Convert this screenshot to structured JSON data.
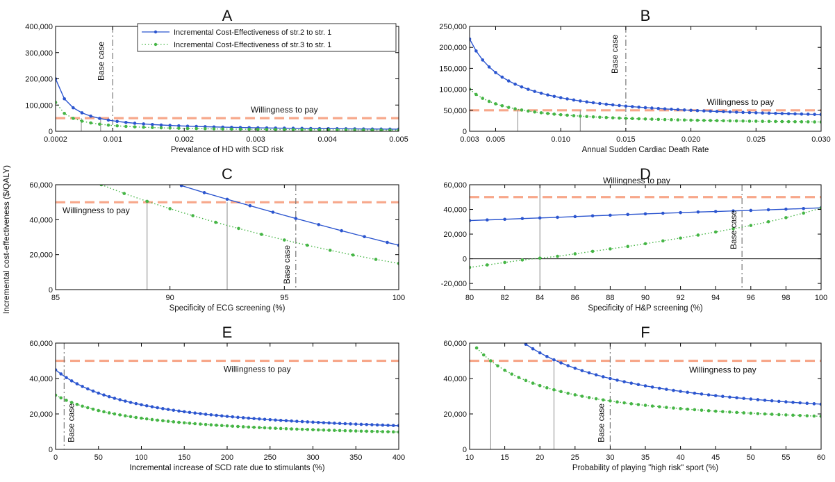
{
  "figure": {
    "ylabel": "Incremental cost-effectiveness ($/QALY)",
    "colors": {
      "series1": "#2b55cf",
      "series2": "#45b545",
      "wtp": "#f7a78a",
      "vline": "#999999",
      "grid_axis": "#000000"
    }
  },
  "legend": {
    "items": [
      {
        "label": "Incremental Cost-Effectiveness of str.2 to str. 1",
        "color": "#2b55cf",
        "style": "solid"
      },
      {
        "label": "Incremental Cost-Effectiveness of str.3 to str. 1",
        "color": "#45b545",
        "style": "dotted"
      }
    ]
  },
  "chart_data": [
    {
      "type": "line",
      "title": "A",
      "xlabel": "Prevalance of HD with SCD risk",
      "ylabel": "",
      "xlim": [
        0.0002,
        0.005
      ],
      "ylim": [
        0,
        400000
      ],
      "xticks": [
        0.0002,
        0.001,
        0.002,
        0.003,
        0.004,
        0.005
      ],
      "xtick_labels": [
        "0.0002",
        "0.001",
        "0.002",
        "0.003",
        "0.004",
        "0.005"
      ],
      "yticks": [
        0,
        100000,
        200000,
        300000,
        400000
      ],
      "ytick_labels": [
        "0",
        "100,000",
        "200,000",
        "300,000",
        "400,000"
      ],
      "willingness_to_pay": 50000,
      "wtp_label": "Willingness to pay",
      "base_case": 0.001,
      "base_case_label": "Base case",
      "threshold_lines": [
        0.00056,
        0.00083
      ],
      "series": [
        {
          "name": "Incremental Cost-Effectiveness of str.2 to str. 1",
          "curve": "reciprocal",
          "a": 0,
          "b": 40,
          "n": 40,
          "style": "solid"
        },
        {
          "name": "Incremental Cost-Effectiveness of str.3 to str. 1",
          "curve": "reciprocal",
          "a": 0,
          "b": 22,
          "n": 40,
          "style": "dotted"
        }
      ]
    },
    {
      "type": "line",
      "title": "B",
      "xlabel": "Annual Sudden Cardiac Death Rate",
      "ylabel": "",
      "xlim": [
        0.003,
        0.03
      ],
      "ylim": [
        0,
        250000
      ],
      "xticks": [
        0.003,
        0.005,
        0.01,
        0.015,
        0.02,
        0.025,
        0.03
      ],
      "xtick_labels": [
        "0.003",
        "0.005",
        "0.010",
        "0.015",
        "0.020",
        "0.025",
        "0.030"
      ],
      "yticks": [
        0,
        50000,
        100000,
        150000,
        200000,
        250000
      ],
      "ytick_labels": [
        "0",
        "50,000",
        "100,000",
        "150,000",
        "200,000",
        "250,000"
      ],
      "willingness_to_pay": 50000,
      "wtp_label": "Willingness to pay",
      "base_case": 0.015,
      "base_case_label": "Base case",
      "threshold_lines": [
        0.0067,
        0.0115
      ],
      "series": [
        {
          "name": "Incremental Cost-Effectiveness of str.2 to str. 1",
          "curve": "reciprocal",
          "a": 20000,
          "b": 600,
          "n": 55,
          "style": "solid"
        },
        {
          "name": "Incremental Cost-Effectiveness of str.3 to str. 1",
          "curve": "reciprocal",
          "a": 13500,
          "b": 260,
          "n": 55,
          "style": "dotted"
        }
      ]
    },
    {
      "type": "line",
      "title": "C",
      "xlabel": "Specificity of ECG screening (%)",
      "ylabel": "",
      "xlim": [
        85,
        100
      ],
      "ylim": [
        0,
        60000
      ],
      "xticks": [
        85,
        90,
        95,
        100
      ],
      "xtick_labels": [
        "85",
        "90",
        "95",
        "100"
      ],
      "yticks": [
        0,
        20000,
        40000,
        60000
      ],
      "ytick_labels": [
        "0",
        "20,000",
        "40,000",
        "60,000"
      ],
      "willingness_to_pay": 50000,
      "wtp_label": "Willingness to pay",
      "base_case": 95.5,
      "base_case_label": "Base case",
      "threshold_lines": [
        89,
        92.5
      ],
      "series": [
        {
          "name": "Incremental Cost-Effectiveness of str.2 to str. 1",
          "x": [
            90.5,
            91.5,
            92.5,
            93.5,
            94.5,
            95.5,
            96.5,
            97.5,
            98.5,
            99.5,
            100
          ],
          "y": [
            59500,
            55500,
            51700,
            48000,
            44300,
            40700,
            37200,
            33700,
            30300,
            27000,
            25400
          ],
          "style": "solid"
        },
        {
          "name": "Incremental Cost-Effectiveness of str.3 to str. 1",
          "x": [
            87,
            88,
            89,
            90,
            91,
            92,
            93,
            94,
            95,
            96,
            97,
            98,
            99,
            100
          ],
          "y": [
            60000,
            55000,
            50500,
            46300,
            42300,
            38500,
            35000,
            31600,
            28400,
            25400,
            22500,
            19800,
            17300,
            15000
          ],
          "style": "dotted"
        }
      ]
    },
    {
      "type": "line",
      "title": "D",
      "xlabel": "Specificity of H&P screening (%)",
      "ylabel": "",
      "xlim": [
        80,
        100
      ],
      "ylim": [
        -25000,
        60000
      ],
      "xticks": [
        80,
        82,
        84,
        86,
        88,
        90,
        92,
        94,
        96,
        98,
        100
      ],
      "xtick_labels": [
        "80",
        "82",
        "84",
        "86",
        "88",
        "90",
        "92",
        "94",
        "96",
        "98",
        "100"
      ],
      "yticks": [
        -20000,
        0,
        20000,
        40000,
        60000
      ],
      "ytick_labels": [
        "-20,000",
        "0",
        "20,000",
        "40,000",
        "60,000"
      ],
      "willingness_to_pay": 50000,
      "wtp_label": "Willingness to pay",
      "base_case": 95.5,
      "base_case_label": "Base case",
      "threshold_lines": [
        84
      ],
      "zero_line": true,
      "series": [
        {
          "name": "Incremental Cost-Effectiveness of str.2 to str. 1",
          "x": [
            80,
            81,
            82,
            83,
            84,
            85,
            86,
            87,
            88,
            89,
            90,
            91,
            92,
            93,
            94,
            95,
            96,
            97,
            98,
            99,
            100
          ],
          "y": [
            31000,
            31500,
            32000,
            32600,
            33100,
            33600,
            34200,
            34800,
            35300,
            35900,
            36400,
            36900,
            37400,
            37900,
            38300,
            38800,
            39200,
            39700,
            40200,
            40700,
            41300
          ],
          "style": "solid"
        },
        {
          "name": "Incremental Cost-Effectiveness of str.3 to str. 1",
          "x": [
            80,
            81,
            82,
            83,
            84,
            85,
            86,
            87,
            88,
            89,
            90,
            91,
            92,
            93,
            94,
            95,
            96,
            97,
            98,
            99,
            100
          ],
          "y": [
            -7000,
            -5000,
            -3000,
            -1000,
            500,
            2000,
            4000,
            6000,
            8000,
            10000,
            12200,
            14500,
            16800,
            19200,
            21700,
            24300,
            27000,
            30000,
            33300,
            37000,
            41000
          ],
          "style": "dotted"
        }
      ]
    },
    {
      "type": "line",
      "title": "E",
      "xlabel": "Incremental increase of SCD rate due to stimulants (%)",
      "ylabel": "",
      "xlim": [
        0,
        400
      ],
      "ylim": [
        0,
        60000
      ],
      "xticks": [
        0,
        50,
        100,
        150,
        200,
        250,
        300,
        350,
        400
      ],
      "xtick_labels": [
        "0",
        "50",
        "100",
        "150",
        "200",
        "250",
        "300",
        "350",
        "400"
      ],
      "yticks": [
        0,
        20000,
        40000,
        60000
      ],
      "ytick_labels": [
        "0",
        "20,000",
        "40,000",
        "60,000"
      ],
      "willingness_to_pay": 50000,
      "wtp_label": "Willingness to pay",
      "base_case": 10,
      "base_case_label": "Base case",
      "threshold_lines": [],
      "series": [
        {
          "name": "Incremental Cost-Effectiveness of str.2 to str. 1",
          "curve": "rational",
          "a": 5500,
          "b": 3940000,
          "c": 100,
          "n": 65,
          "style": "solid"
        },
        {
          "name": "Incremental Cost-Effectiveness of str.3 to str. 1",
          "curve": "rational",
          "a": 4600,
          "b": 2600000,
          "c": 100,
          "n": 65,
          "style": "dotted"
        }
      ]
    },
    {
      "type": "line",
      "title": "F",
      "xlabel": "Probability of playing \"high risk\" sport (%)",
      "ylabel": "",
      "xlim": [
        10,
        60
      ],
      "ylim": [
        0,
        60000
      ],
      "xticks": [
        10,
        15,
        20,
        25,
        30,
        35,
        40,
        45,
        50,
        55,
        60
      ],
      "xtick_labels": [
        "10",
        "15",
        "20",
        "25",
        "30",
        "35",
        "40",
        "45",
        "50",
        "55",
        "60"
      ],
      "yticks": [
        0,
        20000,
        40000,
        60000
      ],
      "ytick_labels": [
        "0",
        "20,000",
        "40,000",
        "60,000"
      ],
      "willingness_to_pay": 50000,
      "wtp_label": "Willingness to pay",
      "base_case": 30,
      "base_case_label": "Base case",
      "threshold_lines": [
        13,
        22
      ],
      "series": [
        {
          "name": "Incremental Cost-Effectiveness of str.2 to str. 1",
          "curve": "reciprocal",
          "a": 11000,
          "b": 870000,
          "n": 43,
          "xstart": 18,
          "style": "solid"
        },
        {
          "name": "Incremental Cost-Effectiveness of str.3 to str. 1",
          "curve": "reciprocal",
          "a": 10000,
          "b": 520000,
          "n": 50,
          "xstart": 11,
          "style": "dotted"
        }
      ]
    }
  ]
}
